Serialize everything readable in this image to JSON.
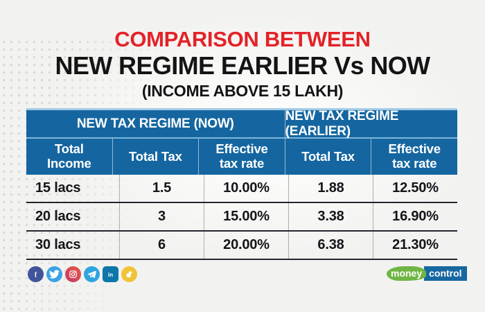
{
  "title": {
    "line1": "COMPARISON BETWEEN",
    "line2": "NEW REGIME EARLIER Vs NOW",
    "line3": "(INCOME ABOVE 15 LAKH)"
  },
  "chart_data": {
    "type": "table",
    "title": "COMPARISON BETWEEN NEW REGIME EARLIER Vs NOW (INCOME ABOVE 15 LAKH)",
    "group_headers": [
      {
        "label": "NEW TAX REGIME (NOW)",
        "span": 3
      },
      {
        "label": "NEW TAX REGIME (EARLIER)",
        "span": 2
      }
    ],
    "columns": [
      "Total Income",
      "Total Tax",
      "Effective tax rate",
      "Total Tax",
      "Effective tax rate"
    ],
    "rows": [
      [
        "15 lacs",
        "1.5",
        "10.00%",
        "1.88",
        "12.50%"
      ],
      [
        "20 lacs",
        "3",
        "15.00%",
        "3.38",
        "16.90%"
      ],
      [
        "30 lacs",
        "6",
        "20.00%",
        "6.38",
        "21.30%"
      ]
    ]
  },
  "footer": {
    "social_icons": [
      "facebook",
      "twitter",
      "instagram",
      "telegram",
      "linkedin",
      "koo"
    ],
    "brand": {
      "part1": "money",
      "part2": "control"
    }
  },
  "colors": {
    "accent_red": "#e32228",
    "header_blue": "#1566a0",
    "divider_light_blue": "#7db7dc",
    "brand_green": "#70b544",
    "brand_blue": "#1767a1"
  }
}
